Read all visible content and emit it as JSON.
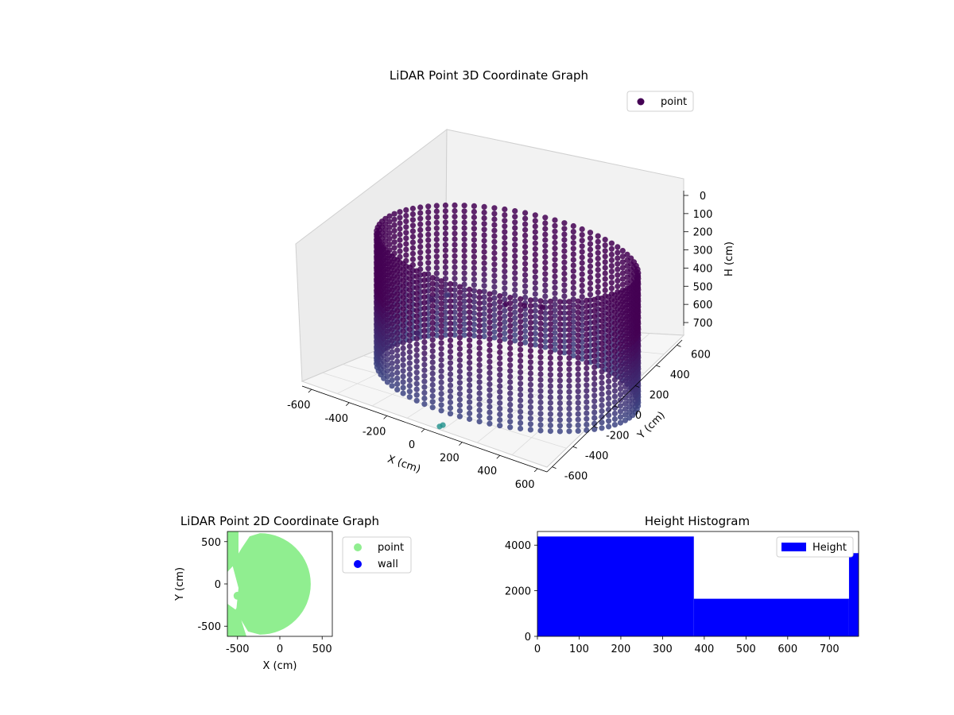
{
  "chart_data": [
    {
      "type": "scatter3d",
      "title": "LiDAR Point 3D Coordinate Graph",
      "xlabel": "X (cm)",
      "ylabel": "Y (cm)",
      "zlabel": "H (cm)",
      "xlim": [
        -650,
        650
      ],
      "ylim": [
        -650,
        650
      ],
      "zlim": [
        0,
        750
      ],
      "z_inverted": true,
      "x_ticks": [
        "-600",
        "-400",
        "-200",
        "0",
        "200",
        "400",
        "600"
      ],
      "y_ticks": [
        "-600",
        "-400",
        "-200",
        "0",
        "200",
        "400",
        "600"
      ],
      "z_ticks": [
        "0",
        "100",
        "200",
        "300",
        "400",
        "500",
        "600",
        "700"
      ],
      "legend": [
        "point"
      ],
      "legend_position": "upper-right",
      "colormap": "viridis",
      "colors": {
        "point": "#440154",
        "low": "#3b528b",
        "outlier": "#21918c"
      },
      "series": [
        {
          "name": "point",
          "description_shape": "cylindrical wall",
          "center": [
            60,
            0
          ],
          "radius": 600,
          "height_range": [
            30,
            700
          ]
        }
      ],
      "scattered_points": [
        {
          "x": 150,
          "y": 0,
          "z": 260
        },
        {
          "x": 200,
          "y": 80,
          "z": 270
        },
        {
          "x": 100,
          "y": -80,
          "z": 250
        },
        {
          "x": -300,
          "y": -200,
          "z": 500
        },
        {
          "x": -400,
          "y": 100,
          "z": 430
        },
        {
          "x": 80,
          "y": -620,
          "z": 735
        },
        {
          "x": 80,
          "y": -650,
          "z": 735
        },
        {
          "x": -620,
          "y": 620,
          "z": 600
        }
      ]
    },
    {
      "type": "scatter",
      "title": "LiDAR Point 2D Coordinate Graph",
      "xlabel": "X (cm)",
      "ylabel": "Y (cm)",
      "xlim": [
        -620,
        620
      ],
      "ylim": [
        -620,
        620
      ],
      "x_ticks": [
        "-500",
        "0",
        "500"
      ],
      "y_ticks": [
        "-500",
        "0",
        "500"
      ],
      "legend": [
        "point",
        "wall"
      ],
      "legend_position": "outside-right",
      "colors": {
        "point": "#90ee90",
        "wall": "#0000ff"
      },
      "series": [
        {
          "name": "point",
          "description_shape": "filled disc with voids on left"
        },
        {
          "name": "wall",
          "values": []
        }
      ],
      "holes": [
        {
          "x": -470,
          "y": 120
        },
        {
          "x": -320,
          "y": 130
        },
        {
          "x": -340,
          "y": -100
        },
        {
          "x": -500,
          "y": -140
        },
        {
          "x": -330,
          "y": -260
        },
        {
          "x": -480,
          "y": -320
        },
        {
          "x": -330,
          "y": -410
        },
        {
          "x": -560,
          "y": 500
        }
      ]
    },
    {
      "type": "bar",
      "title": "Height Histogram",
      "xlabel": "",
      "ylabel": "",
      "xlim": [
        0,
        770
      ],
      "ylim": [
        0,
        4600
      ],
      "x_ticks": [
        "0",
        "100",
        "200",
        "300",
        "400",
        "500",
        "600",
        "700"
      ],
      "y_ticks": [
        "0",
        "2000",
        "4000"
      ],
      "legend": [
        "Height"
      ],
      "legend_position": "upper-right",
      "color": "#0000ff",
      "bins": [
        {
          "start": 0,
          "end": 375,
          "count": 4380
        },
        {
          "start": 375,
          "end": 747,
          "count": 1650
        },
        {
          "start": 747,
          "end": 770,
          "count": 3650
        }
      ]
    }
  ]
}
